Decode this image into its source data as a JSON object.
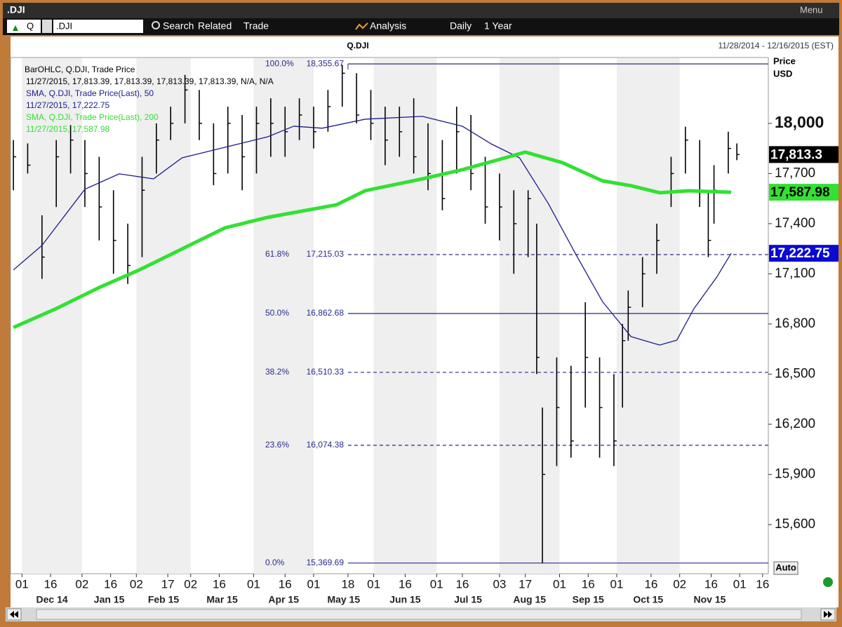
{
  "window": {
    "title": ".DJI",
    "menu": "Menu"
  },
  "toolbar": {
    "symbol_type": "Q",
    "symbol": ".DJI",
    "items": [
      "Search",
      "Related",
      "Trade",
      "Analysis",
      "Daily",
      "1 Year"
    ]
  },
  "chart_data": {
    "type": "ohlc",
    "title": "Q.DJI",
    "date_range": "11/28/2014 - 12/16/2015 (EST)",
    "y_axis_label": [
      "Price",
      "USD"
    ],
    "auto_button": "Auto",
    "xlim": [
      -1,
      264
    ],
    "ylim": [
      15306,
      18394
    ],
    "yticks": [
      {
        "value": 15600,
        "label": "15,600"
      },
      {
        "value": 15900,
        "label": "15,900"
      },
      {
        "value": 16200,
        "label": "16,200"
      },
      {
        "value": 16500,
        "label": "16,500"
      },
      {
        "value": 16800,
        "label": "16,800"
      },
      {
        "value": 17100,
        "label": "17,100"
      },
      {
        "value": 17400,
        "label": "17,400"
      },
      {
        "value": 17700,
        "label": "17,700"
      },
      {
        "value": 18000,
        "label": "18,000"
      }
    ],
    "xticks": [
      {
        "value": 3,
        "label": "01"
      },
      {
        "value": 13,
        "label": "16"
      },
      {
        "value": 24,
        "label": "02"
      },
      {
        "value": 34,
        "label": "16"
      },
      {
        "value": 43,
        "label": "02"
      },
      {
        "value": 54,
        "label": "17"
      },
      {
        "value": 62,
        "label": "02"
      },
      {
        "value": 72,
        "label": "16"
      },
      {
        "value": 84,
        "label": "01"
      },
      {
        "value": 95,
        "label": "16"
      },
      {
        "value": 105,
        "label": "01"
      },
      {
        "value": 117,
        "label": "18"
      },
      {
        "value": 126,
        "label": "01"
      },
      {
        "value": 137,
        "label": "16"
      },
      {
        "value": 148,
        "label": "01"
      },
      {
        "value": 157,
        "label": "16"
      },
      {
        "value": 170,
        "label": "03"
      },
      {
        "value": 179,
        "label": "17"
      },
      {
        "value": 191,
        "label": "01"
      },
      {
        "value": 201,
        "label": "16"
      },
      {
        "value": 211,
        "label": "01"
      },
      {
        "value": 223,
        "label": "16"
      },
      {
        "value": 233,
        "label": "02"
      },
      {
        "value": 244,
        "label": "16"
      },
      {
        "value": 254,
        "label": "01"
      },
      {
        "value": 262,
        "label": "16"
      }
    ],
    "months": [
      "Dec 14",
      "Jan 15",
      "Feb 15",
      "Mar 15",
      "Apr 15",
      "May 15",
      "Jun 15",
      "Jul 15",
      "Aug 15",
      "Sep 15",
      "Oct 15",
      "Nov 15"
    ],
    "bars": {
      "color": "#000000",
      "tag": "17,813.3",
      "legend": [
        "BarOHLC, Q.DJI, Trade Price",
        "11/27/2015, 17,813.39, 17,813.39, 17,813.39, 17,813.39, N/A, N/A"
      ],
      "x": [
        0,
        5,
        10,
        15,
        20,
        25,
        30,
        35,
        40,
        45,
        50,
        55,
        60,
        65,
        70,
        75,
        80,
        85,
        90,
        95,
        100,
        105,
        110,
        115,
        120,
        125,
        130,
        135,
        140,
        145,
        150,
        155,
        160,
        165,
        170,
        175,
        180,
        183,
        185,
        190,
        195,
        200,
        205,
        210,
        213,
        215,
        220,
        225,
        230,
        235,
        240,
        243,
        245,
        250,
        253
      ],
      "high": [
        17900,
        17880,
        17450,
        17900,
        17990,
        17900,
        17800,
        17600,
        17400,
        17800,
        18000,
        18100,
        18290,
        18200,
        18000,
        18100,
        18050,
        18100,
        18150,
        18100,
        18150,
        18100,
        18200,
        18350,
        18300,
        18200,
        18100,
        18100,
        18150,
        18000,
        17900,
        18100,
        18050,
        17800,
        17700,
        17600,
        17600,
        17400,
        16300,
        16600,
        16550,
        16930,
        16600,
        16500,
        16800,
        17000,
        17200,
        17400,
        17800,
        17980,
        17900,
        17600,
        17750,
        17950,
        17880
      ],
      "low": [
        17600,
        17700,
        17070,
        17500,
        17700,
        17500,
        17300,
        17100,
        17040,
        17200,
        17700,
        17900,
        18000,
        17900,
        17630,
        17700,
        17600,
        17700,
        17800,
        17800,
        17900,
        17850,
        17950,
        18100,
        18000,
        17900,
        17750,
        17800,
        17700,
        17600,
        17480,
        17700,
        17600,
        17400,
        17300,
        17100,
        17200,
        16500,
        15370,
        15950,
        16000,
        16300,
        16000,
        15950,
        16300,
        16700,
        16900,
        17100,
        17500,
        17700,
        17500,
        17200,
        17400,
        17700,
        17780
      ],
      "close": [
        17800,
        17750,
        17200,
        17800,
        17900,
        17700,
        17500,
        17300,
        17150,
        17600,
        17900,
        18000,
        18200,
        18000,
        17700,
        18000,
        17800,
        18000,
        18000,
        17950,
        18050,
        17950,
        18100,
        18300,
        18050,
        18000,
        17900,
        17950,
        17800,
        17700,
        17550,
        17950,
        17700,
        17500,
        17500,
        17400,
        17550,
        16600,
        15900,
        16300,
        16100,
        16600,
        16300,
        16100,
        16700,
        16900,
        17100,
        17300,
        17700,
        17900,
        17600,
        17300,
        17600,
        17850,
        17813.39
      ]
    },
    "series": [
      {
        "name": "SMA 50",
        "color": "#1c1c8e",
        "width": 1.3,
        "tag": "17,222.75",
        "legend": [
          "SMA, Q.DJI, Trade Price(Last), 50",
          "11/27/2015, 17,222.75"
        ],
        "x": [
          0,
          10,
          25,
          37,
          49,
          59,
          74,
          89,
          98,
          108,
          123,
          143,
          157,
          167,
          177,
          187,
          197,
          206,
          216,
          226,
          232,
          238,
          246,
          251
        ],
        "values": [
          17123,
          17270,
          17606,
          17698,
          17668,
          17794,
          17857,
          17920,
          17983,
          17971,
          18025,
          18042,
          17983,
          17878,
          17794,
          17522,
          17207,
          16934,
          16724,
          16674,
          16703,
          16892,
          17081,
          17222.75
        ]
      },
      {
        "name": "SMA 200",
        "color": "#33e033",
        "width": 5,
        "tag": "17,587.98",
        "legend": [
          "SMA, Q.DJI, Trade Price(Last),  200",
          "11/27/2015, 17,587.98"
        ],
        "x": [
          0,
          15,
          30,
          44,
          59,
          74,
          89,
          113,
          123,
          143,
          157,
          172,
          179,
          192,
          206,
          216,
          226,
          236,
          251
        ],
        "values": [
          16779,
          16892,
          17018,
          17123,
          17249,
          17375,
          17438,
          17513,
          17597,
          17668,
          17723,
          17794,
          17828,
          17765,
          17656,
          17627,
          17585,
          17597,
          17587.98
        ]
      }
    ],
    "fib_start": 117,
    "fib_levels": [
      {
        "pct": "100.0%",
        "value": 18355.67,
        "label": "18,355.67",
        "dashed": false
      },
      {
        "pct": "61.8%",
        "value": 17215.03,
        "label": "17,215.03",
        "dashed": true
      },
      {
        "pct": "50.0%",
        "value": 16862.68,
        "label": "16,862.68",
        "dashed": false
      },
      {
        "pct": "38.2%",
        "value": 16510.33,
        "label": "16,510.33",
        "dashed": true
      },
      {
        "pct": "23.6%",
        "value": 16074.38,
        "label": "16,074.38",
        "dashed": true
      },
      {
        "pct": "0.0%",
        "value": 15369.69,
        "label": "15,369.69",
        "dashed": false
      }
    ],
    "fib_color": "#2a2a8a"
  }
}
